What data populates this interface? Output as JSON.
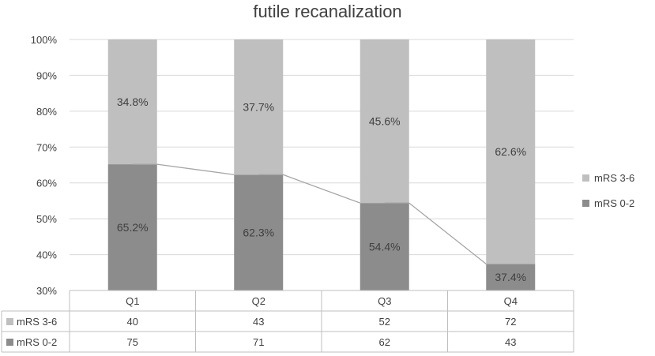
{
  "chart_data": {
    "type": "bar",
    "stacked": true,
    "title": "futile recanalization",
    "categories": [
      "Q1",
      "Q2",
      "Q3",
      "Q4"
    ],
    "ylim": [
      30,
      100
    ],
    "yticks": [
      "30%",
      "40%",
      "50%",
      "60%",
      "70%",
      "80%",
      "90%",
      "100%"
    ],
    "series": [
      {
        "name": "mRS 0-2",
        "color": "#8c8c8c",
        "percent": [
          65.2,
          62.3,
          54.4,
          37.4
        ],
        "labels": [
          "65.2%",
          "62.3%",
          "54.4%",
          "37.4%"
        ],
        "counts": [
          "75",
          "71",
          "62",
          "43"
        ]
      },
      {
        "name": "mRS 3-6",
        "color": "#bfbfbf",
        "percent": [
          34.8,
          37.7,
          45.6,
          62.6
        ],
        "labels": [
          "34.8%",
          "37.7%",
          "45.6%",
          "62.6%"
        ],
        "counts": [
          "40",
          "43",
          "52",
          "72"
        ]
      }
    ],
    "legend": [
      "mRS 3-6",
      "mRS 0-2"
    ],
    "legend_position": "right",
    "data_table": true,
    "trend_line": "connects tops of mRS 0-2 segments"
  }
}
